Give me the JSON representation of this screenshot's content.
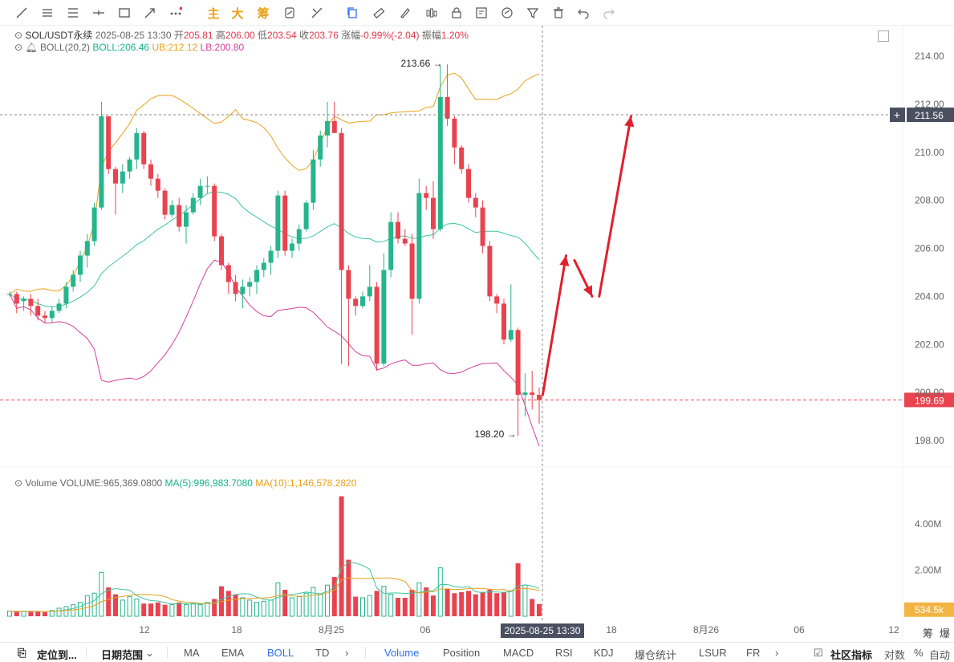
{
  "toolbar": {
    "main_label": "主",
    "big_label": "大",
    "chip_label": "筹"
  },
  "legend": {
    "symbol": "SOL/USDT永续",
    "datetime": "2025-08-25 13:30",
    "open_label": "开",
    "open": "205.81",
    "high_label": "高",
    "high": "206.00",
    "low_label": "低",
    "low": "203.54",
    "close_label": "收",
    "close": "203.76",
    "change_label": "涨幅",
    "change": "-0.99%(-2.04)",
    "amp_label": "振幅",
    "amp": "1.20%",
    "boll_name": "BOLL(20,2)",
    "boll_mid": "BOLL:206.46",
    "boll_ub": "UB:212.12",
    "boll_lb": "LB:200.80",
    "vol_name": "Volume",
    "vol_value": "VOLUME:965,369.0800",
    "vol_ma5": "MA(5):996,983.7080",
    "vol_ma10": "MA(10):1,146,578.2820"
  },
  "colors": {
    "up": "#26b58c",
    "down": "#e8434f",
    "mid": "#3cc6a0",
    "ub": "#e8a21a",
    "lb": "#d63fa0",
    "arrow": "#e0202e"
  },
  "chart_data": {
    "type": "candlestick",
    "price_axis": {
      "ticks": [
        "214.00",
        "212.00",
        "210.00",
        "208.00",
        "206.00",
        "204.00",
        "202.00",
        "200.00",
        "198.00"
      ],
      "range": [
        197.3,
        215.3
      ]
    },
    "volume_axis": {
      "ticks": [
        "4.00M",
        "2.00M"
      ],
      "range": [
        0,
        6.4
      ]
    },
    "x_labels": [
      "12",
      "18",
      "8月25",
      "06",
      "18",
      "8月26",
      "06",
      "12"
    ],
    "crosshair_time": "2025-08-25 13:30",
    "crosshair_price": "211.56",
    "last_price": "199.69",
    "last_volume": "534.5k",
    "high_mark": "213.66",
    "low_mark": "198.20",
    "candles": [
      [
        204.1,
        204.2,
        204.0,
        204.1
      ],
      [
        204.1,
        204.2,
        203.3,
        203.7
      ],
      [
        203.8,
        204.0,
        203.4,
        203.9
      ],
      [
        203.9,
        204.1,
        203.2,
        203.6
      ],
      [
        203.6,
        203.9,
        203.0,
        203.2
      ],
      [
        203.2,
        203.4,
        202.9,
        203.1
      ],
      [
        203.1,
        203.6,
        202.9,
        203.4
      ],
      [
        203.4,
        203.9,
        203.3,
        203.7
      ],
      [
        203.7,
        204.6,
        203.5,
        204.4
      ],
      [
        204.4,
        205.1,
        204.2,
        204.9
      ],
      [
        204.9,
        205.9,
        204.6,
        205.7
      ],
      [
        205.7,
        206.6,
        205.2,
        206.3
      ],
      [
        206.3,
        207.9,
        206.1,
        207.7
      ],
      [
        207.7,
        212.1,
        207.6,
        211.5
      ],
      [
        211.5,
        211.5,
        209.1,
        209.3
      ],
      [
        209.3,
        209.4,
        207.4,
        208.7
      ],
      [
        208.7,
        209.5,
        208.3,
        209.2
      ],
      [
        209.2,
        209.8,
        208.9,
        209.7
      ],
      [
        209.7,
        211.0,
        209.3,
        210.8
      ],
      [
        210.8,
        210.9,
        209.3,
        209.5
      ],
      [
        209.5,
        209.7,
        208.6,
        208.9
      ],
      [
        208.9,
        209.1,
        208.1,
        208.4
      ],
      [
        208.4,
        208.5,
        207.2,
        207.4
      ],
      [
        207.4,
        208.0,
        207.3,
        207.8
      ],
      [
        207.8,
        208.1,
        206.7,
        206.9
      ],
      [
        206.9,
        207.8,
        206.2,
        207.5
      ],
      [
        207.5,
        208.3,
        207.4,
        208.1
      ],
      [
        208.1,
        208.9,
        207.8,
        208.6
      ],
      [
        208.6,
        209.0,
        208.3,
        208.6
      ],
      [
        208.6,
        208.7,
        206.3,
        206.5
      ],
      [
        206.5,
        206.6,
        205.1,
        205.3
      ],
      [
        205.3,
        205.4,
        204.1,
        204.6
      ],
      [
        204.6,
        204.9,
        203.8,
        204.1
      ],
      [
        204.1,
        204.7,
        203.5,
        204.4
      ],
      [
        204.4,
        204.8,
        204.0,
        204.6
      ],
      [
        204.6,
        205.3,
        204.1,
        205.1
      ],
      [
        205.1,
        205.6,
        204.8,
        205.4
      ],
      [
        205.4,
        206.1,
        204.9,
        205.9
      ],
      [
        205.9,
        208.4,
        205.6,
        208.2
      ],
      [
        208.2,
        208.4,
        205.7,
        205.9
      ],
      [
        205.9,
        206.4,
        205.6,
        206.2
      ],
      [
        206.2,
        207.0,
        205.9,
        206.8
      ],
      [
        206.8,
        208.0,
        206.7,
        207.9
      ],
      [
        207.9,
        210.1,
        207.6,
        209.7
      ],
      [
        209.7,
        210.9,
        209.4,
        210.7
      ],
      [
        210.7,
        212.1,
        210.2,
        211.3
      ],
      [
        211.3,
        212.1,
        210.9,
        210.8
      ],
      [
        210.8,
        211.0,
        201.2,
        205.1
      ],
      [
        205.1,
        205.3,
        201.1,
        203.9
      ],
      [
        203.9,
        204.0,
        203.2,
        203.6
      ],
      [
        203.6,
        204.2,
        203.5,
        204.0
      ],
      [
        204.0,
        205.3,
        203.8,
        204.4
      ],
      [
        204.4,
        204.6,
        200.9,
        201.2
      ],
      [
        201.2,
        205.8,
        201.1,
        205.1
      ],
      [
        205.1,
        207.5,
        204.8,
        207.1
      ],
      [
        207.1,
        207.5,
        206.2,
        206.4
      ],
      [
        206.4,
        206.8,
        206.1,
        206.2
      ],
      [
        206.2,
        206.6,
        202.4,
        203.9
      ],
      [
        203.9,
        208.9,
        203.7,
        208.3
      ],
      [
        208.3,
        208.6,
        207.6,
        208.1
      ],
      [
        208.1,
        208.8,
        206.4,
        206.8
      ],
      [
        206.8,
        213.6,
        206.7,
        212.3
      ],
      [
        212.3,
        213.66,
        211.1,
        211.4
      ],
      [
        211.4,
        211.5,
        209.5,
        210.2
      ],
      [
        210.2,
        210.3,
        209.1,
        209.3
      ],
      [
        209.3,
        209.5,
        207.9,
        208.1
      ],
      [
        208.1,
        208.3,
        207.3,
        207.7
      ],
      [
        207.7,
        208.0,
        205.8,
        206.1
      ],
      [
        206.1,
        206.3,
        203.8,
        204.0
      ],
      [
        204.0,
        204.1,
        203.3,
        203.7
      ],
      [
        203.7,
        203.9,
        202.0,
        202.2
      ],
      [
        202.2,
        204.5,
        202.1,
        202.6
      ],
      [
        202.6,
        202.7,
        198.2,
        199.9
      ],
      [
        199.9,
        200.8,
        199.0,
        200.0
      ],
      [
        200.0,
        200.9,
        199.3,
        199.9
      ],
      [
        199.9,
        200.2,
        198.7,
        199.69
      ]
    ],
    "volume": [
      0.22,
      0.21,
      0.22,
      0.21,
      0.2,
      0.18,
      0.25,
      0.35,
      0.42,
      0.5,
      0.6,
      0.9,
      1.0,
      1.9,
      1.25,
      0.95,
      0.7,
      0.85,
      0.75,
      0.55,
      0.55,
      0.6,
      0.5,
      0.5,
      0.6,
      0.5,
      0.55,
      0.5,
      0.6,
      0.75,
      1.3,
      1.1,
      0.95,
      0.8,
      0.7,
      0.6,
      0.65,
      0.7,
      1.45,
      1.15,
      0.8,
      0.85,
      1.0,
      1.25,
      0.95,
      1.35,
      1.7,
      5.2,
      2.45,
      0.85,
      0.8,
      0.9,
      1.1,
      1.3,
      0.95,
      0.8,
      0.8,
      1.15,
      1.45,
      1.25,
      0.9,
      2.1,
      1.2,
      1.0,
      1.05,
      1.1,
      0.95,
      1.05,
      1.15,
      1.0,
      1.05,
      1.1,
      2.3,
      1.35,
      0.75,
      0.53
    ],
    "drawn_arrows": [
      {
        "from": [
          75.5,
          199.9
        ],
        "to": [
          78.8,
          205.7
        ]
      },
      {
        "from": [
          80.0,
          205.5
        ],
        "to": [
          82.5,
          204.0
        ]
      },
      {
        "from": [
          83.5,
          204.0
        ],
        "to": [
          88.0,
          211.5
        ]
      }
    ]
  },
  "bottombar": {
    "locate": "定位到...",
    "date_range": "日期范围",
    "indicators": [
      "MA",
      "EMA",
      "BOLL",
      "TD"
    ],
    "subs": [
      "Volume",
      "Position",
      "MACD",
      "RSI",
      "KDJ",
      "爆仓统计",
      "LSUR",
      "FR"
    ],
    "community": "社区指标",
    "log": "对数",
    "pct": "%",
    "auto": "自动"
  },
  "right_bottom": {
    "chip": "筹",
    "burst": "爆"
  }
}
